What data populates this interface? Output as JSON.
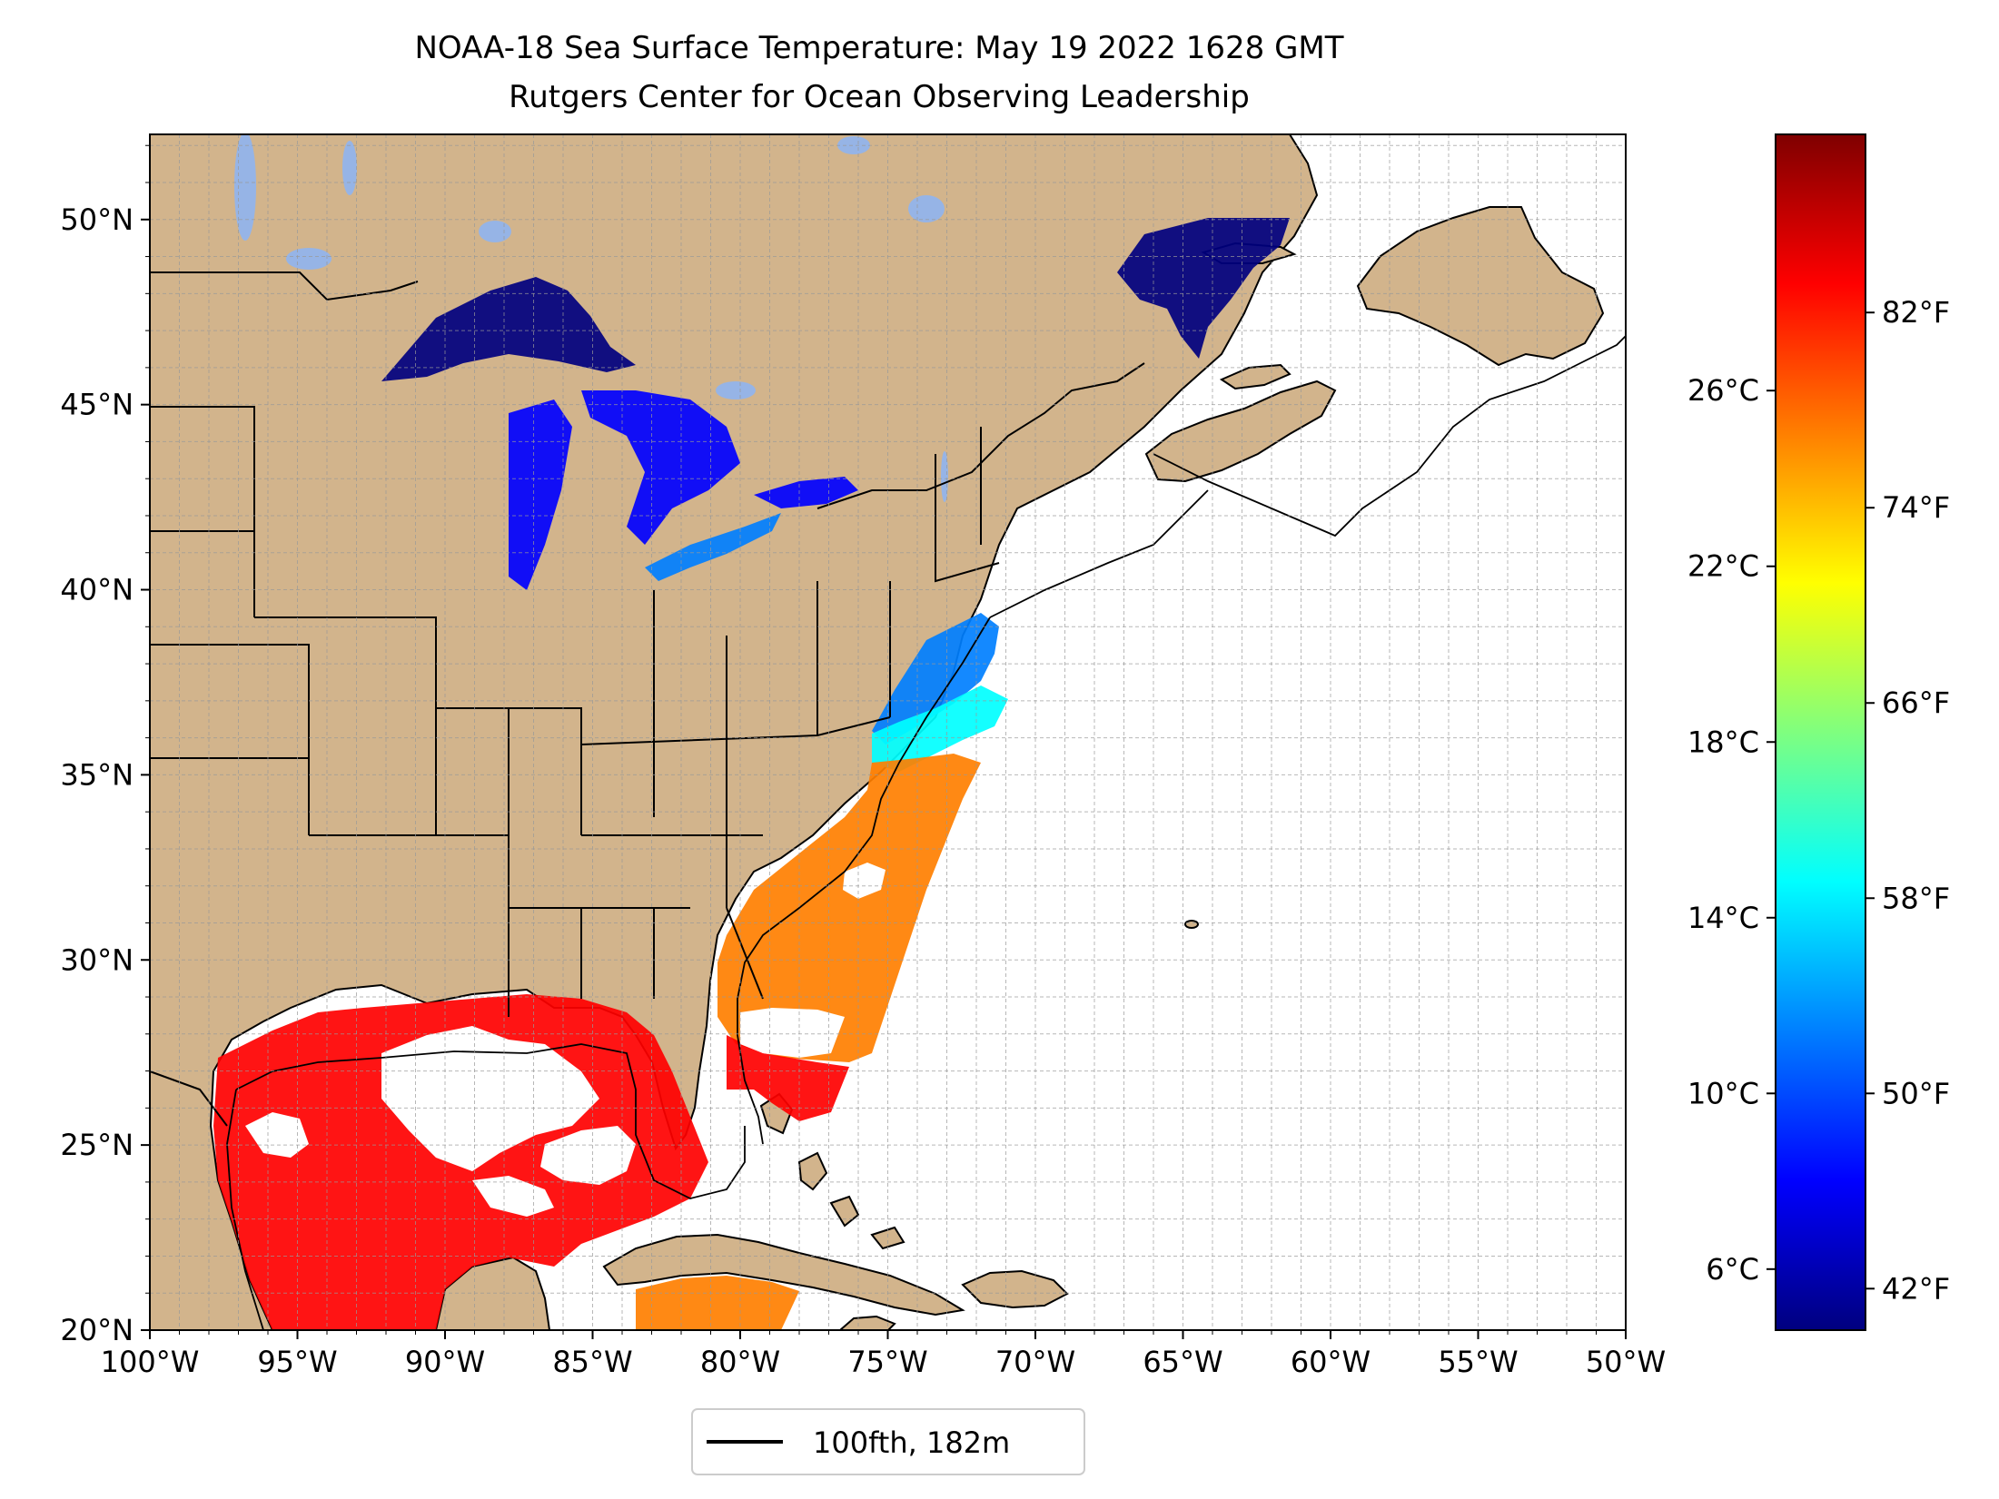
{
  "title": {
    "line1": "NOAA-18 Sea Surface Temperature: May 19 2022 1628 GMT",
    "line2": "Rutgers Center for Ocean Observing Leadership"
  },
  "map": {
    "lon_range": [
      -100,
      -50
    ],
    "lat_range": [
      20,
      52.3
    ],
    "grid": true,
    "land_color": "#d2b48c",
    "lake_color": "#96b4e6",
    "no_data_color": "#ffffff",
    "lon_ticks": [
      {
        "value": -100,
        "label": "100°W"
      },
      {
        "value": -95,
        "label": "95°W"
      },
      {
        "value": -90,
        "label": "90°W"
      },
      {
        "value": -85,
        "label": "85°W"
      },
      {
        "value": -80,
        "label": "80°W"
      },
      {
        "value": -75,
        "label": "75°W"
      },
      {
        "value": -70,
        "label": "70°W"
      },
      {
        "value": -65,
        "label": "65°W"
      },
      {
        "value": -60,
        "label": "60°W"
      },
      {
        "value": -55,
        "label": "55°W"
      },
      {
        "value": -50,
        "label": "50°W"
      }
    ],
    "lat_ticks": [
      {
        "value": 20,
        "label": "20°N"
      },
      {
        "value": 25,
        "label": "25°N"
      },
      {
        "value": 30,
        "label": "30°N"
      },
      {
        "value": 35,
        "label": "35°N"
      },
      {
        "value": 40,
        "label": "40°N"
      },
      {
        "value": 45,
        "label": "45°N"
      },
      {
        "value": 50,
        "label": "50°N"
      }
    ],
    "legend": {
      "label": "100fth, 182m",
      "placement": "bottom-center",
      "line_color": "#000000"
    }
  },
  "colorbar": {
    "colormap": "jet",
    "range_f": [
      40.3,
      89.3
    ],
    "colors": [
      "#00007f",
      "#0000ff",
      "#007fff",
      "#00ffff",
      "#7fff7f",
      "#ffff00",
      "#ff7f00",
      "#ff0000",
      "#7f0000"
    ],
    "fahrenheit_ticks": [
      {
        "value": 42,
        "label": "42°F"
      },
      {
        "value": 50,
        "label": "50°F"
      },
      {
        "value": 58,
        "label": "58°F"
      },
      {
        "value": 66,
        "label": "66°F"
      },
      {
        "value": 74,
        "label": "74°F"
      },
      {
        "value": 82,
        "label": "82°F"
      }
    ],
    "celsius_ticks": [
      {
        "value": 6,
        "label": "6°C"
      },
      {
        "value": 10,
        "label": "10°C"
      },
      {
        "value": 14,
        "label": "14°C"
      },
      {
        "value": 18,
        "label": "18°C"
      },
      {
        "value": 22,
        "label": "22°C"
      },
      {
        "value": 26,
        "label": "26°C"
      }
    ]
  }
}
